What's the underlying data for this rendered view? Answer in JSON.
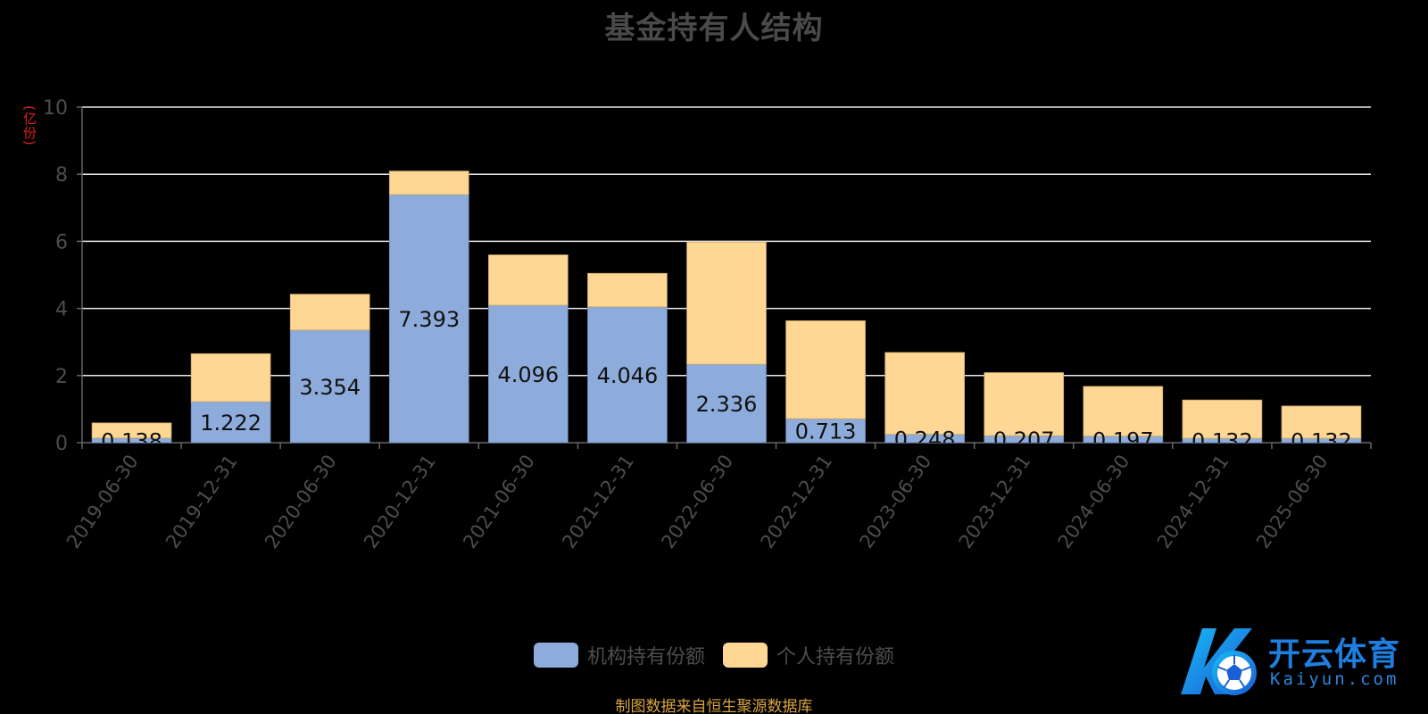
{
  "title": "基金持有人结构",
  "y_unit": "(亿份)",
  "source_note": "制图数据来自恒生聚源数据库",
  "watermark": {
    "cn": "开云体育",
    "en": "Kaiyun.com"
  },
  "colors": {
    "institutional": "#8eacdb",
    "individual": "#ffd794",
    "grid": "#e8e8e8",
    "axis": "#666666",
    "tick_label": "#4d4d4d",
    "title": "#4a4a4a",
    "unit": "#e0201b",
    "source": "#d9a441"
  },
  "chart_data": {
    "type": "bar",
    "stacked": true,
    "title": "基金持有人结构",
    "ylabel": "(亿份)",
    "ylim": [
      0,
      10
    ],
    "yticks": [
      0,
      2,
      4,
      6,
      8,
      10
    ],
    "grid": true,
    "legend_position": "bottom",
    "categories": [
      "2019-06-30",
      "2019-12-31",
      "2020-06-30",
      "2020-12-31",
      "2021-06-30",
      "2021-12-31",
      "2022-06-30",
      "2022-12-31",
      "2023-06-30",
      "2023-12-31",
      "2024-06-30",
      "2024-12-31",
      "2025-06-30"
    ],
    "series": [
      {
        "name": "机构持有份额",
        "values": [
          0.138,
          1.222,
          3.354,
          7.393,
          4.096,
          4.046,
          2.336,
          0.713,
          0.248,
          0.207,
          0.197,
          0.132,
          0.132
        ],
        "labels": [
          "0.138",
          "1.222",
          "3.354",
          "7.393",
          "4.096",
          "4.046",
          "2.336",
          "0.713",
          "0.248",
          "0.207",
          "0.197",
          "0.132",
          "0.132"
        ]
      },
      {
        "name": "个人持有份额",
        "values": [
          0.45,
          1.43,
          1.07,
          0.7,
          1.5,
          1.0,
          3.64,
          2.92,
          2.44,
          1.88,
          1.48,
          1.14,
          0.96
        ]
      }
    ]
  }
}
